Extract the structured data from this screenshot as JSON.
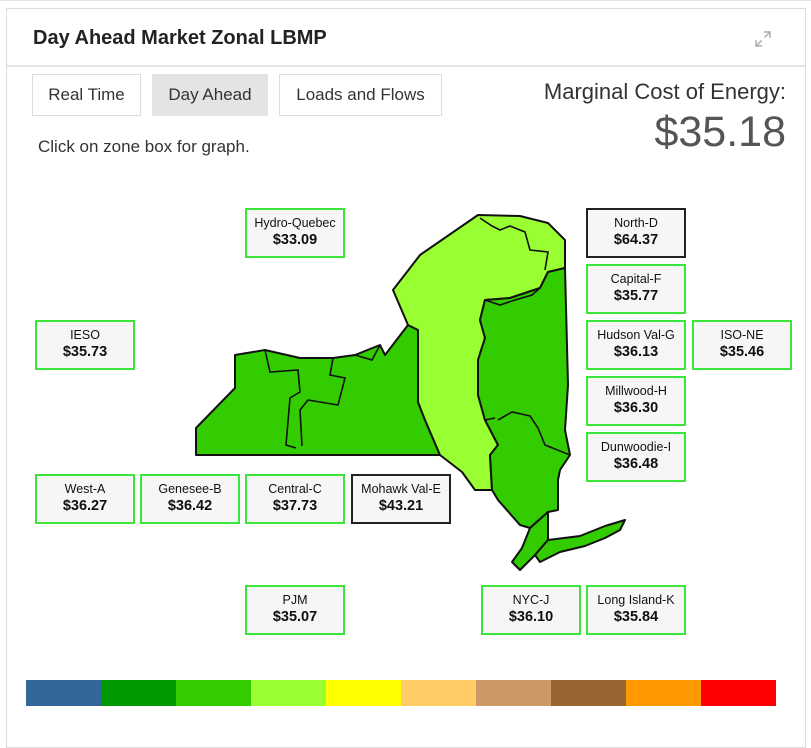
{
  "header": {
    "title": "Day Ahead Market Zonal LBMP"
  },
  "tabs": [
    {
      "label": "Real Time",
      "active": false
    },
    {
      "label": "Day Ahead",
      "active": true
    },
    {
      "label": "Loads and Flows",
      "active": false
    }
  ],
  "hint": "Click on zone box for graph.",
  "marginal_cost": {
    "label": "Marginal Cost of Energy:",
    "value": "$35.18"
  },
  "zones": {
    "hydro_quebec": {
      "name": "Hydro-Quebec",
      "price": "$33.09"
    },
    "ieso": {
      "name": "IESO",
      "price": "$35.73"
    },
    "west_a": {
      "name": "West-A",
      "price": "$36.27"
    },
    "genesee_b": {
      "name": "Genesee-B",
      "price": "$36.42"
    },
    "central_c": {
      "name": "Central-C",
      "price": "$37.73"
    },
    "mohawk_val_e": {
      "name": "Mohawk Val-E",
      "price": "$43.21"
    },
    "pjm": {
      "name": "PJM",
      "price": "$35.07"
    },
    "north_d": {
      "name": "North-D",
      "price": "$64.37"
    },
    "capital_f": {
      "name": "Capital-F",
      "price": "$35.77"
    },
    "hudson_val_g": {
      "name": "Hudson Val-G",
      "price": "$36.13"
    },
    "iso_ne": {
      "name": "ISO-NE",
      "price": "$35.46"
    },
    "millwood_h": {
      "name": "Millwood-H",
      "price": "$36.30"
    },
    "dunwoodie_i": {
      "name": "Dunwoodie-I",
      "price": "$36.48"
    },
    "nyc_j": {
      "name": "NYC-J",
      "price": "$36.10"
    },
    "long_island_k": {
      "name": "Long Island-K",
      "price": "$35.84"
    }
  },
  "map_colors": {
    "dark_green": "#33cc00",
    "light_green": "#99ff33",
    "outline": "#111111"
  },
  "legend_colors": [
    "#336699",
    "#009900",
    "#33cc00",
    "#99ff33",
    "#ffff00",
    "#ffcc66",
    "#cc9966",
    "#996633",
    "#ff9900",
    "#ff0000"
  ]
}
